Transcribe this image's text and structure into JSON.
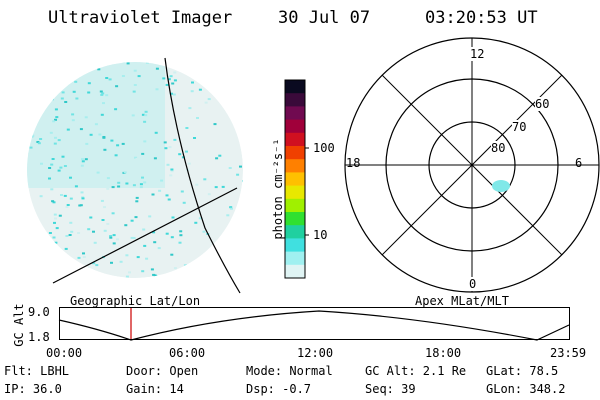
{
  "header": {
    "instrument": "Ultraviolet Imager",
    "date": "30 Jul 07",
    "time": "03:20:53 UT"
  },
  "colorbar": {
    "label": "photon cm⁻²s⁻¹",
    "ticks": [
      "100",
      "10"
    ],
    "colors": [
      "#0a0a20",
      "#3a0a3a",
      "#700a50",
      "#a0003a",
      "#d01020",
      "#f04000",
      "#ff8000",
      "#ffc000",
      "#e8e800",
      "#a0f000",
      "#30e030",
      "#20d0a0",
      "#40e0e0",
      "#a0f0f0",
      "#e0f4f4"
    ]
  },
  "polar_plot": {
    "mlt_labels": [
      "12",
      "18",
      "6",
      "0"
    ],
    "mlat_labels": [
      "60",
      "70",
      "80"
    ]
  },
  "labels": {
    "left_panel": "Geographic Lat/Lon",
    "right_panel": "Apex MLat/MLT"
  },
  "gc_alt_plot": {
    "axis_label": "GC Alt",
    "yticks": [
      "9.0",
      "1.8"
    ],
    "xticks": [
      "00:00",
      "06:00",
      "12:00",
      "18:00",
      "23:59"
    ],
    "current_time_color": "#cc0000"
  },
  "info": {
    "flt": "Flt: LBHL",
    "door": "Door: Open",
    "mode": "Mode: Normal",
    "gc_alt": "GC Alt: 2.1 Re",
    "glat": "GLat:  78.5",
    "ip": "IP: 36.0",
    "gain": "Gain: 14",
    "dsp": "Dsp:   -0.7",
    "seq": "Seq: 39",
    "glon": "GLon: 348.2"
  }
}
